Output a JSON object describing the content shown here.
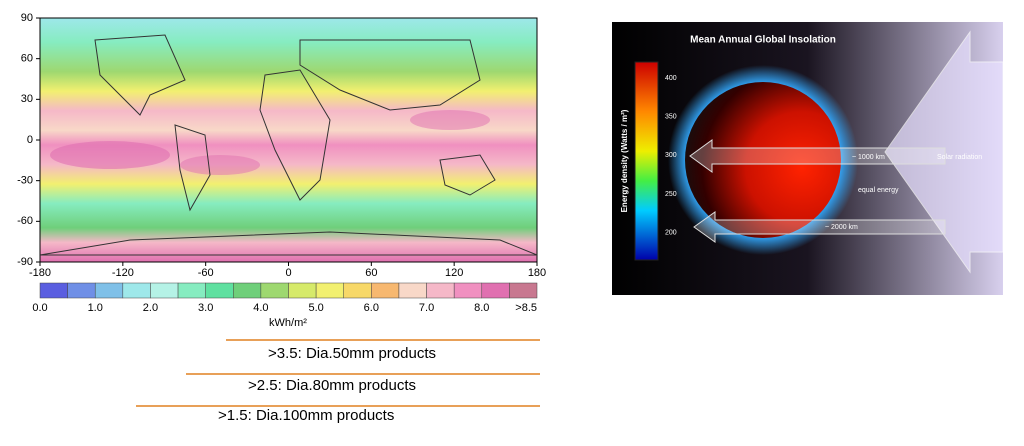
{
  "map": {
    "yticks": [
      "90",
      "60",
      "30",
      "0",
      "-30",
      "-60",
      "-90"
    ],
    "xticks": [
      "-180",
      "-120",
      "-60",
      "0",
      "60",
      "120",
      "180"
    ],
    "colorbar": {
      "labels": [
        "0.0",
        "1.0",
        "2.0",
        "3.0",
        "4.0",
        "5.0",
        "6.0",
        "7.0",
        "8.0",
        ">8.5"
      ],
      "unit": "kWh/m²",
      "colors": [
        "#5a5ee0",
        "#6f8fe6",
        "#7fc0e8",
        "#9ee8ea",
        "#b5f2e6",
        "#86ecc0",
        "#5fe0a0",
        "#6fcf7a",
        "#9ed870",
        "#d6ea6a",
        "#f2f070",
        "#f7d868",
        "#f7b870",
        "#f8d8c8",
        "#f5b8c8",
        "#f090c0",
        "#e070b0",
        "#c87890"
      ]
    }
  },
  "products": [
    ">3.5:  Dia.50mm products",
    ">2.5:  Dia.80mm products",
    ">1.5:  Dia.100mm products"
  ],
  "insolation": {
    "title": "Mean Annual Global Insolation",
    "axis_label": "Energy density (Watts / m²)",
    "ticks": [
      "400",
      "350",
      "300",
      "250",
      "200"
    ],
    "annotations": [
      "~ 1000 km",
      "equal energy",
      "~ 2000 km",
      "Solar radiation"
    ]
  }
}
